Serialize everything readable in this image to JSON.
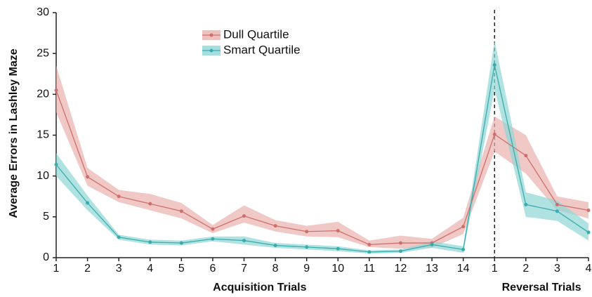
{
  "chart_data": {
    "type": "line",
    "ylabel": "Average Errors in Lashley Maze",
    "category_groups": [
      {
        "label": "Acquisition Trials",
        "categories": [
          "1",
          "2",
          "3",
          "4",
          "5",
          "6",
          "7",
          "8",
          "9",
          "10",
          "11",
          "12",
          "13",
          "14"
        ]
      },
      {
        "label": "Reversal Trials",
        "categories": [
          "1",
          "2",
          "3",
          "4"
        ]
      }
    ],
    "ylim": [
      0,
      30
    ],
    "yticks": [
      0,
      5,
      10,
      15,
      20,
      25,
      30
    ],
    "series": [
      {
        "name": "Dull Quartile",
        "color": "#cf6f6c",
        "band_color": "#eab0ae",
        "values": [
          20.5,
          9.9,
          7.5,
          6.6,
          5.7,
          3.5,
          5.1,
          3.9,
          3.2,
          3.3,
          1.6,
          1.8,
          1.8,
          3.8,
          15.1,
          12.5,
          6.5,
          5.8
        ],
        "upper": [
          23.5,
          11,
          8.3,
          7.8,
          6.7,
          4,
          6.4,
          4.6,
          3.9,
          4.4,
          2.1,
          2.7,
          2.3,
          4.9,
          17.3,
          15,
          7.5,
          6.8
        ],
        "lower": [
          17.8,
          8.8,
          6.8,
          5.8,
          4.8,
          3,
          4.3,
          3.2,
          2.6,
          2.5,
          1.3,
          1.1,
          1.2,
          2.9,
          13,
          10.3,
          5.8,
          4.8
        ]
      },
      {
        "name": "Smart Quartile",
        "color": "#3aacae",
        "band_color": "#8fd6d6",
        "values": [
          11.4,
          6.7,
          2.5,
          1.9,
          1.8,
          2.3,
          2.1,
          1.5,
          1.3,
          1.1,
          0.7,
          0.8,
          1.6,
          1.0,
          23.6,
          6.5,
          5.7,
          3.1
        ],
        "upper": [
          12.8,
          7.6,
          2.8,
          2.2,
          2.1,
          2.6,
          2.6,
          1.8,
          1.6,
          1.4,
          0.9,
          1.0,
          2.0,
          1.4,
          26.6,
          8.0,
          7.0,
          4.2
        ],
        "lower": [
          10,
          5.8,
          2.2,
          1.6,
          1.5,
          2,
          1.6,
          1.2,
          1.0,
          0.8,
          0.5,
          0.6,
          1.2,
          0.6,
          20.6,
          5.0,
          4.5,
          2.1
        ]
      }
    ]
  }
}
